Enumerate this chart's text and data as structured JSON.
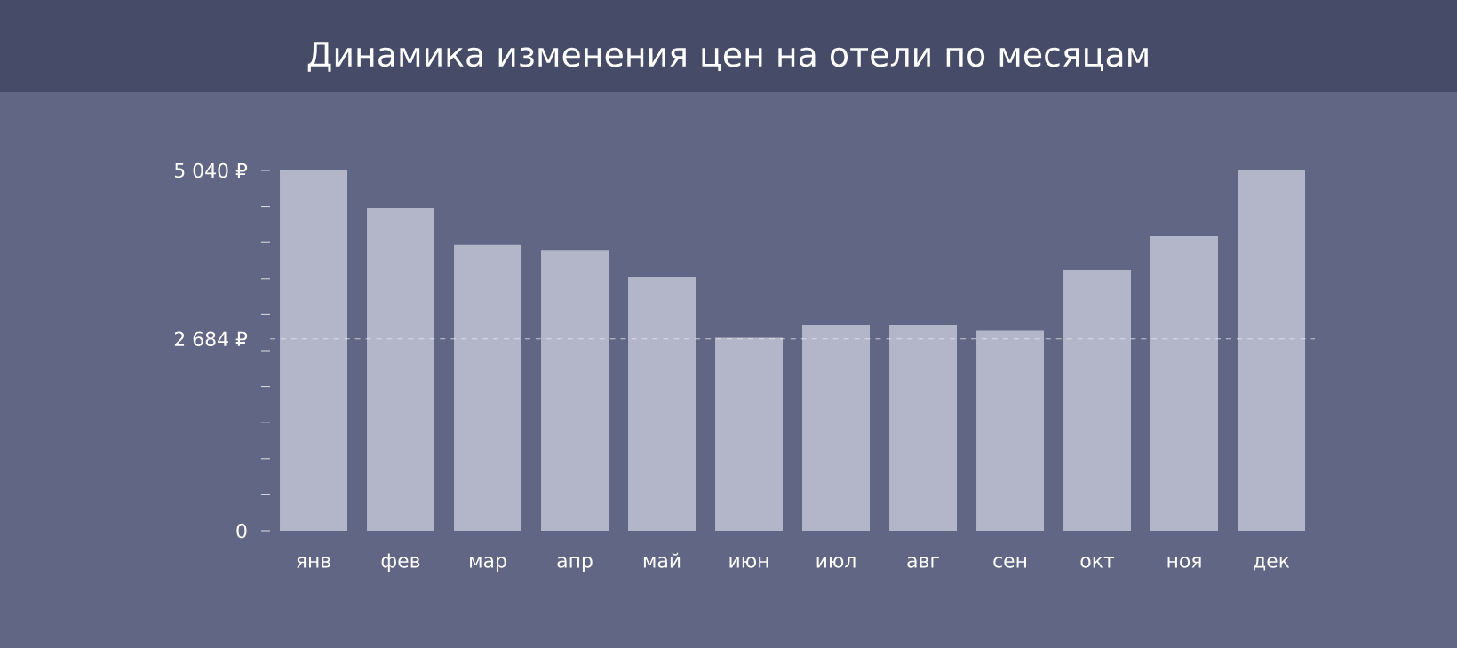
{
  "chart_data": {
    "type": "bar",
    "title": "Динамика изменения цен на отели по месяцам",
    "categories": [
      "янв",
      "фев",
      "мар",
      "апр",
      "май",
      "июн",
      "июл",
      "авг",
      "сен",
      "окт",
      "ноя",
      "дек"
    ],
    "values": [
      5040,
      4520,
      4000,
      3920,
      3550,
      2700,
      2880,
      2880,
      2800,
      3650,
      4120,
      5040
    ],
    "color": "#b3b6c8",
    "ylim": [
      0,
      5040
    ],
    "yticks": [
      0,
      {
        "value": 504,
        "label": null
      },
      {
        "value": 1008,
        "label": null
      },
      {
        "value": 1512,
        "label": null
      },
      {
        "value": 2016,
        "label": null
      },
      {
        "value": 2520,
        "label": null
      },
      {
        "value": 3024,
        "label": null
      },
      {
        "value": 3528,
        "label": null
      },
      {
        "value": 4032,
        "label": null
      },
      {
        "value": 4536,
        "label": null
      },
      {
        "value": 5040,
        "label": "5 040 ₽"
      }
    ],
    "ref_lines": [
      {
        "axis": "y",
        "value": 2684,
        "label": "2 684 ₽",
        "color": "#e6e6ee",
        "line_style": "dashed"
      }
    ],
    "grid": false
  }
}
